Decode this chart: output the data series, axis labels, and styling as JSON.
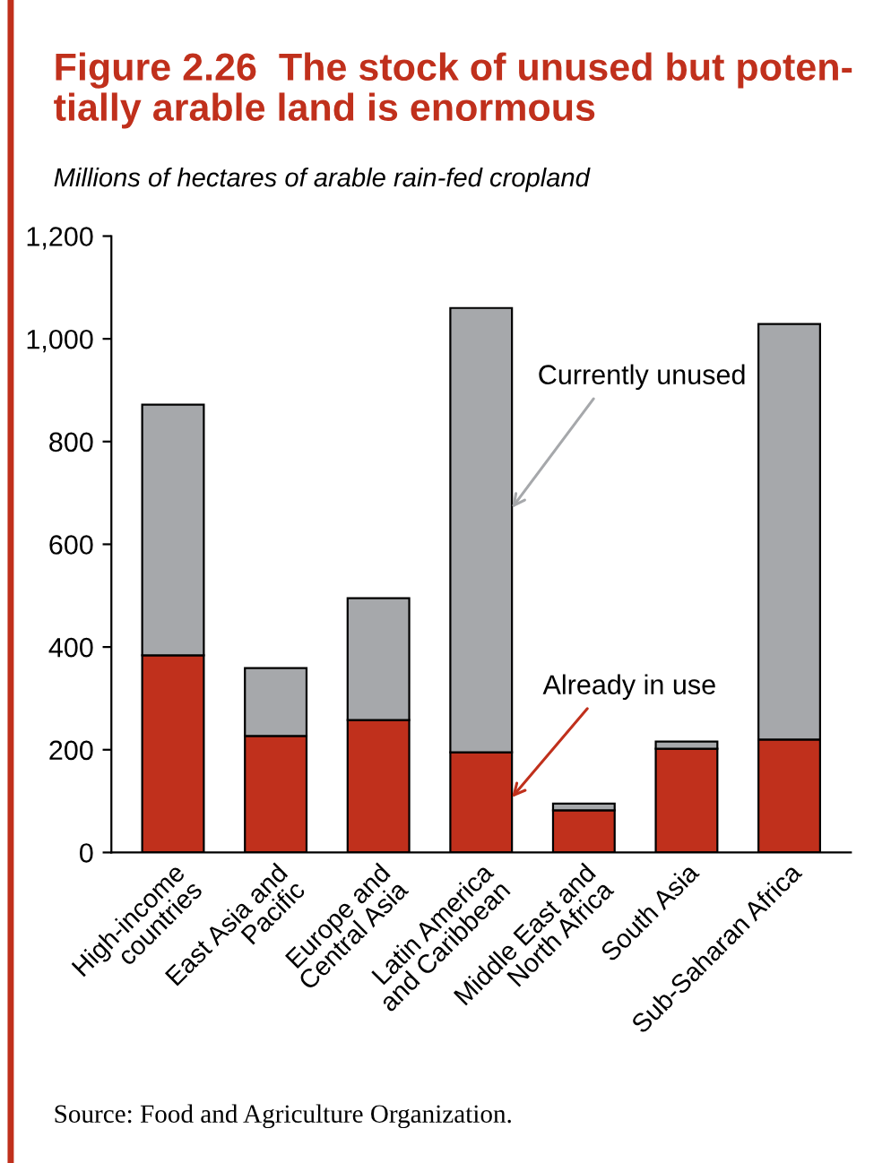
{
  "chart_data": {
    "type": "bar",
    "stacked": true,
    "title": "Figure 2.26  The stock of unused but poten-\ntially arable land is enormous",
    "ylabel": "Millions of hectares of arable rain-fed cropland",
    "categories": [
      "High-income\ncountries",
      "East Asia and\nPacific",
      "Europe and\nCentral Asia",
      "Latin America\nand Caribbean",
      "Middle East and\nNorth Africa",
      "South Asia",
      "Sub-Saharan Africa"
    ],
    "series": [
      {
        "name": "Already in use",
        "color": "#c0301c",
        "values": [
          384,
          227,
          258,
          195,
          82,
          202,
          220
        ]
      },
      {
        "name": "Currently unused",
        "color": "#a6a8ab",
        "values": [
          488,
          132,
          237,
          865,
          13,
          14,
          809
        ]
      }
    ],
    "ylim": [
      0,
      1200
    ],
    "yticks": [
      0,
      200,
      400,
      600,
      800,
      {
        "value": 1000,
        "label": "1,000"
      },
      {
        "value": 1200,
        "label": "1,200"
      }
    ],
    "grid": false,
    "legend": false,
    "annotations": [
      "Source: Food and Agriculture Organization."
    ]
  }
}
